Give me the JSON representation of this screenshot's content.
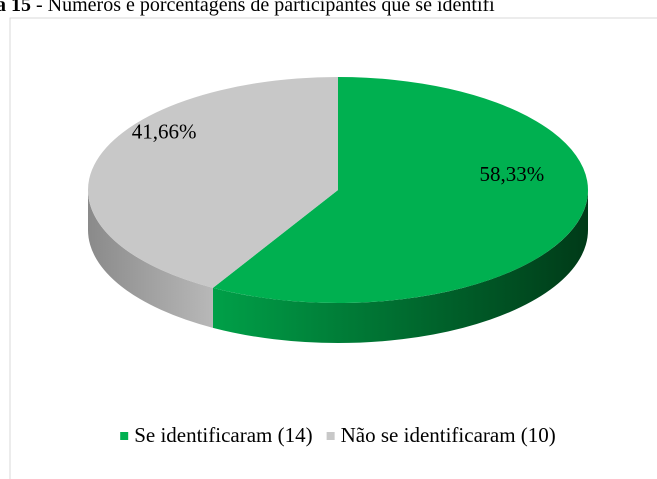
{
  "chart_data": {
    "type": "pie",
    "figure_label": "a 15",
    "title": "- Números e porcentagens de participantes que se identifi",
    "series": [
      {
        "name": "Se identificaram (14)",
        "color": "#00b050",
        "value": 58.33,
        "value_label": "58,33%"
      },
      {
        "name": "Não se identificaram (10)",
        "color": "#c8c8c8",
        "value": 41.66,
        "value_label": "41,66%"
      }
    ],
    "legend": "bottom"
  }
}
